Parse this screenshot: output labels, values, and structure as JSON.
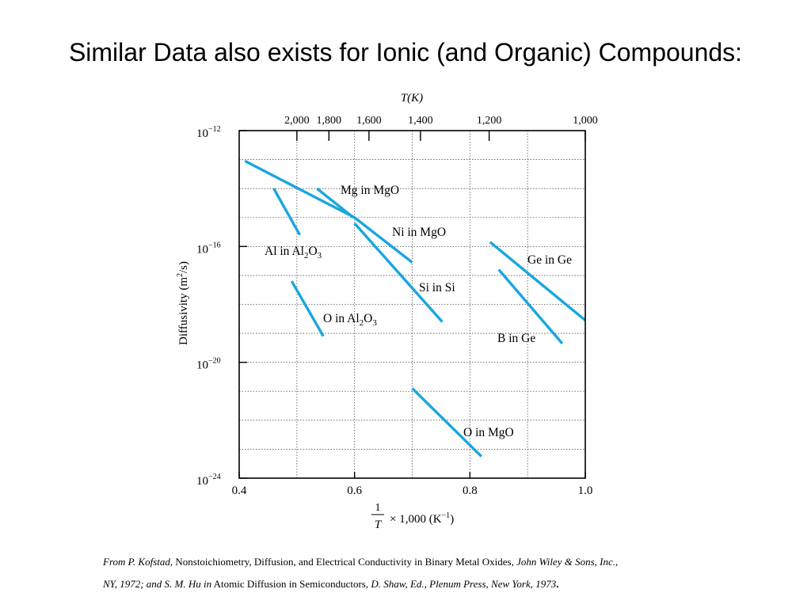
{
  "slide": {
    "title": "Similar Data also exists for Ionic (and Organic) Compounds:"
  },
  "chart_data": {
    "type": "line",
    "title": "",
    "xlabel_parts": {
      "frac_num": "1",
      "frac_den": "T",
      "rest": "× 1,000 (K",
      "exp": "−1",
      "close": ")"
    },
    "ylabel_parts": {
      "main": "Diffusivity (m",
      "exp": "2",
      "rest": "/s)"
    },
    "top_axis_label": "T(K)",
    "xlim": [
      0.4,
      1.0
    ],
    "ylim_log10": [
      -24,
      -12
    ],
    "y_scale": "log",
    "grid": true,
    "x_ticks": [
      {
        "value": 0.4,
        "label": "0.4"
      },
      {
        "value": 0.6,
        "label": "0.6"
      },
      {
        "value": 0.8,
        "label": "0.8"
      },
      {
        "value": 1.0,
        "label": "1.0"
      }
    ],
    "y_ticks": [
      {
        "exp": -12,
        "base": "10",
        "label_exp": "−12"
      },
      {
        "exp": -16,
        "base": "10",
        "label_exp": "−16"
      },
      {
        "exp": -20,
        "base": "10",
        "label_exp": "−20"
      },
      {
        "exp": -24,
        "base": "10",
        "label_exp": "−24"
      }
    ],
    "top_ticks": [
      {
        "kelvin": 2000,
        "label": "2,000"
      },
      {
        "kelvin": 1800,
        "label": "1,800"
      },
      {
        "kelvin": 1600,
        "label": "1,600"
      },
      {
        "kelvin": 1400,
        "label": "1,400"
      },
      {
        "kelvin": 1200,
        "label": "1,200"
      },
      {
        "kelvin": 1000,
        "label": "1,000"
      }
    ],
    "line_color": "#1aa6df",
    "series": [
      {
        "name": "Mg in MgO",
        "points": [
          [
            0.41,
            -13.05
          ],
          [
            0.6,
            -15.0
          ],
          [
            0.7,
            -16.55
          ]
        ],
        "label": {
          "parts": [
            {
              "t": "Mg in MgO"
            }
          ]
        }
      },
      {
        "name": "Ni in MgO",
        "points": [
          [
            0.535,
            -14.0
          ],
          [
            0.598,
            -15.0
          ]
        ],
        "label": {
          "parts": [
            {
              "t": "Ni in MgO"
            }
          ]
        }
      },
      {
        "name": "Al in Al2O3",
        "points": [
          [
            0.46,
            -14.0
          ],
          [
            0.505,
            -15.6
          ]
        ],
        "label": {
          "parts": [
            {
              "t": "Al in Al"
            },
            {
              "t": "2",
              "sub": true
            },
            {
              "t": "O"
            },
            {
              "t": "3",
              "sub": true
            }
          ]
        }
      },
      {
        "name": "O in Al2O3",
        "points": [
          [
            0.491,
            -17.2
          ],
          [
            0.546,
            -19.1
          ]
        ],
        "label": {
          "parts": [
            {
              "t": "O in Al"
            },
            {
              "t": "2",
              "sub": true
            },
            {
              "t": "O"
            },
            {
              "t": "3",
              "sub": true
            }
          ]
        }
      },
      {
        "name": "Si in Si",
        "points": [
          [
            0.6,
            -15.2
          ],
          [
            0.752,
            -18.6
          ]
        ],
        "label": {
          "parts": [
            {
              "t": "Si in Si"
            }
          ]
        }
      },
      {
        "name": "Ge in Ge",
        "points": [
          [
            0.835,
            -15.85
          ],
          [
            1.0,
            -18.55
          ]
        ],
        "label": {
          "parts": [
            {
              "t": "Ge in Ge"
            }
          ]
        }
      },
      {
        "name": "B in Ge",
        "points": [
          [
            0.85,
            -16.8
          ],
          [
            0.96,
            -19.35
          ]
        ],
        "label": {
          "parts": [
            {
              "t": "B in Ge"
            }
          ]
        }
      },
      {
        "name": "O in MgO",
        "points": [
          [
            0.7,
            -20.9
          ],
          [
            0.82,
            -23.25
          ]
        ],
        "label": {
          "parts": [
            {
              "t": "O in MgO"
            }
          ]
        }
      }
    ]
  },
  "citation": {
    "part1": "From P. Kofstad,",
    "part2": " Nonstoichiometry, Diffusion, and Electrical Conductivity in Binary Metal Oxides,",
    "part3": " John Wiley & Sons, Inc.,",
    "part4": "NY, 1972; and S. M. Hu in",
    "part5": " Atomic Diffusion in Semiconductors",
    "part6": ", D. Shaw, Ed., Plenum Press, New York, 1973",
    "part7": "."
  }
}
